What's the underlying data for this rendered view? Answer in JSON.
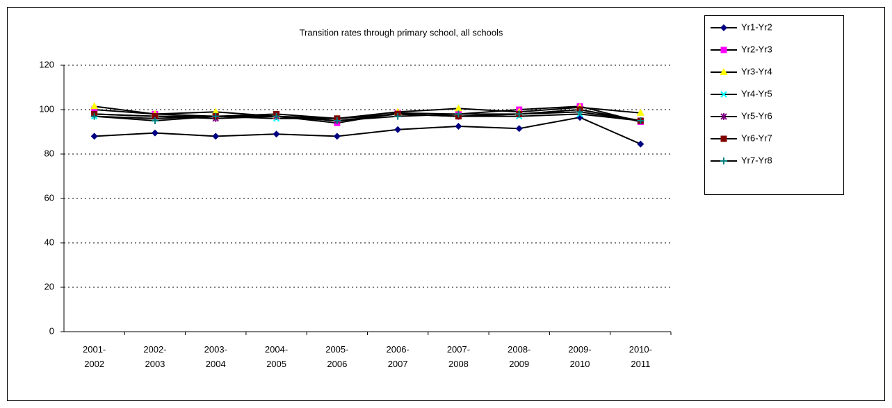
{
  "chart_data": {
    "type": "line",
    "title": "Transition rates through primary school, all schools",
    "categories": [
      "2001-2002",
      "2002-2003",
      "2003-2004",
      "2004-2005",
      "2005-2006",
      "2006-2007",
      "2007-2008",
      "2008-2009",
      "2009-2010",
      "2010-2011"
    ],
    "series": [
      {
        "name": "Yr1-Yr2",
        "color": "#000080",
        "marker": "diamond",
        "values": [
          88,
          89.5,
          88,
          89,
          88,
          91,
          92.5,
          91.5,
          96.5,
          84.5
        ]
      },
      {
        "name": "Yr2-Yr3",
        "color": "#ff00ff",
        "marker": "square",
        "values": [
          100,
          98,
          97,
          97,
          94,
          98.5,
          98,
          100,
          101.5,
          94.5
        ]
      },
      {
        "name": "Yr3-Yr4",
        "color": "#ffff00",
        "marker": "triangle",
        "values": [
          101.5,
          98,
          99,
          97,
          96,
          99,
          100.5,
          99,
          101,
          98.5
        ]
      },
      {
        "name": "Yr4-Yr5",
        "color": "#00ffff",
        "marker": "x",
        "values": [
          97,
          96,
          97,
          96,
          96,
          98,
          97,
          97,
          98,
          95
        ]
      },
      {
        "name": "Yr5-Yr6",
        "color": "#800080",
        "marker": "star",
        "values": [
          98,
          97,
          96,
          97,
          95,
          98,
          97,
          98,
          100,
          95
        ]
      },
      {
        "name": "Yr6-Yr7",
        "color": "#800000",
        "marker": "square",
        "values": [
          98,
          97,
          97,
          98,
          96,
          98,
          97,
          98,
          100,
          95
        ]
      },
      {
        "name": "Yr7-Yr8",
        "color": "#008080",
        "marker": "plus",
        "values": [
          97,
          95,
          97,
          97,
          95,
          97,
          98,
          98,
          99,
          95
        ]
      }
    ],
    "line_color": "#000000",
    "ylim": [
      0,
      120
    ],
    "yticks": [
      0,
      20,
      40,
      60,
      80,
      100,
      120
    ],
    "grid": true,
    "legend": "right"
  }
}
